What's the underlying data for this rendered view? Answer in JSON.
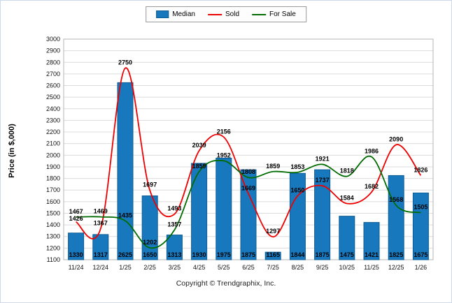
{
  "chart_data": {
    "type": "bar",
    "categories": [
      "11/24",
      "12/24",
      "1/25",
      "2/25",
      "3/25",
      "4/25",
      "5/25",
      "6/25",
      "7/25",
      "8/25",
      "9/25",
      "10/25",
      "11/25",
      "12/25",
      "1/26"
    ],
    "series": [
      {
        "name": "Median",
        "type": "bar",
        "color": "#1878be",
        "border_color": "#0d5c94",
        "values": [
          1330,
          1317,
          2625,
          1650,
          1313,
          1930,
          1975,
          1875,
          1165,
          1844,
          1875,
          1475,
          1421,
          1825,
          1675
        ]
      },
      {
        "name": "Sold",
        "type": "line",
        "color": "#ee0000",
        "values": [
          1426,
          1367,
          2750,
          1697,
          1493,
          2039,
          2156,
          1669,
          1297,
          1650,
          1737,
          1584,
          1682,
          2090,
          1826
        ]
      },
      {
        "name": "For Sale",
        "type": "line",
        "color": "#006b00",
        "values": [
          1467,
          1469,
          1435,
          1202,
          1357,
          1859,
          1952,
          1808,
          1859,
          1853,
          1921,
          1818,
          1986,
          1568,
          1505
        ]
      }
    ],
    "ylabel": "Price (in $,000)",
    "ylim": [
      1100,
      3000
    ],
    "ytick_step": 100,
    "grid": true,
    "legend_position": "top"
  },
  "footer": {
    "text": "Copyright © Trendgraphix, Inc."
  }
}
